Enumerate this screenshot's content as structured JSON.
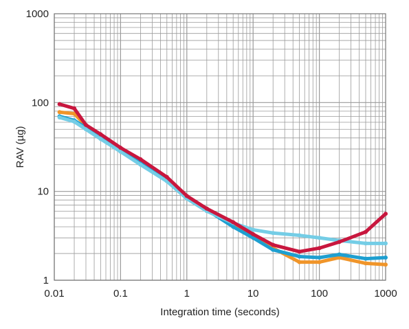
{
  "chart_data": {
    "type": "line",
    "xlabel": "Integration time (seconds)",
    "ylabel": "RAV (µg)",
    "x_scale": "log",
    "y_scale": "log",
    "xlim": [
      0.01,
      1000
    ],
    "ylim": [
      1,
      1000
    ],
    "grid": true,
    "x_ticks": [
      "0.01",
      "0.1",
      "1",
      "10",
      "100",
      "1000"
    ],
    "y_ticks": [
      "1",
      "10",
      "100",
      "1000"
    ],
    "series": [
      {
        "color": "#f0952a",
        "x": [
          0.012,
          0.02,
          0.03,
          0.05,
          0.1,
          0.2,
          0.5,
          1,
          2,
          5,
          10,
          20,
          50,
          100,
          200,
          500,
          1000
        ],
        "y": [
          78,
          75,
          55,
          43,
          30,
          22,
          14,
          8.6,
          6.4,
          4.3,
          3.2,
          2.3,
          1.6,
          1.6,
          1.8,
          1.55,
          1.5
        ]
      },
      {
        "color": "#1e9fd0",
        "x": [
          0.012,
          0.02,
          0.03,
          0.05,
          0.1,
          0.2,
          0.5,
          1,
          2,
          5,
          10,
          20,
          50,
          100,
          200,
          500,
          1000
        ],
        "y": [
          70,
          63,
          52,
          40,
          29,
          21,
          13.5,
          8.5,
          6.2,
          4.0,
          3.0,
          2.2,
          1.85,
          1.8,
          1.95,
          1.75,
          1.8
        ]
      },
      {
        "color": "#74cde6",
        "x": [
          0.012,
          0.02,
          0.03,
          0.05,
          0.1,
          0.2,
          0.5,
          1,
          2,
          5,
          10,
          20,
          50,
          100,
          200,
          500,
          1000
        ],
        "y": [
          68,
          61,
          50,
          39,
          28,
          20,
          13,
          8.3,
          6.0,
          4.4,
          3.7,
          3.4,
          3.2,
          3.0,
          2.8,
          2.6,
          2.6
        ]
      },
      {
        "color": "#c8173e",
        "x": [
          0.012,
          0.02,
          0.03,
          0.05,
          0.1,
          0.2,
          0.5,
          1,
          2,
          5,
          10,
          20,
          50,
          100,
          200,
          500,
          1000
        ],
        "y": [
          96,
          86,
          56,
          44,
          31,
          23,
          14.5,
          8.9,
          6.4,
          4.5,
          3.3,
          2.5,
          2.1,
          2.3,
          2.7,
          3.5,
          5.6
        ]
      }
    ]
  }
}
